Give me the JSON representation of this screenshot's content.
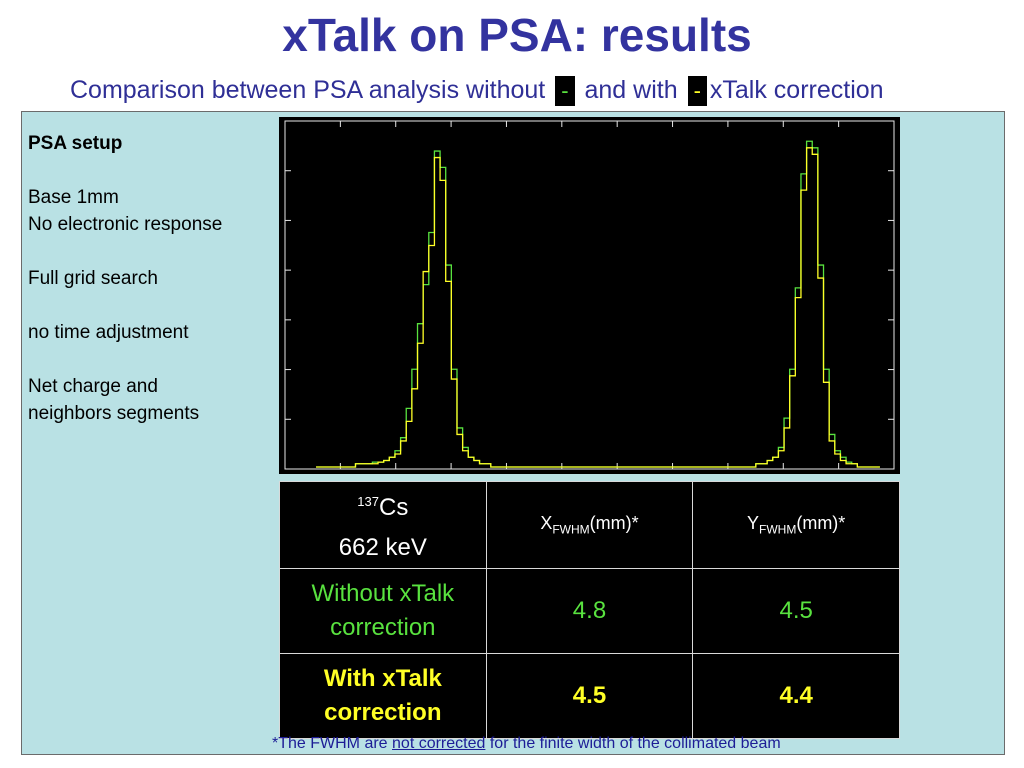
{
  "title": "xTalk on PSA: results",
  "subtitle": {
    "part1": "Comparison between PSA analysis without",
    "dash": "-",
    "part2": "and with",
    "part3": "xTalk correction"
  },
  "colors": {
    "without": "#59e23f",
    "with": "#ffff26",
    "title": "#33339f",
    "panel": "#b9e1e4"
  },
  "setup": {
    "heading": "PSA setup",
    "lines": [
      "Base 1mm",
      "No electronic response",
      "",
      "Full grid search",
      "",
      "no time adjustment",
      "",
      "Net charge and",
      "neighbors segments"
    ]
  },
  "table": {
    "isotope_mass": "137",
    "isotope_symbol": "Cs",
    "energy": "662 keV",
    "col1": {
      "label": "X",
      "sub": "FWHM",
      "unit": "(mm)*"
    },
    "col2": {
      "label": "Y",
      "sub": "FWHM",
      "unit": "(mm)*"
    },
    "rows": [
      {
        "label_line1": "Without xTalk",
        "label_line2": "correction",
        "x": "4.8",
        "y": "4.5"
      },
      {
        "label_line1": "With xTalk",
        "label_line2": "correction",
        "x": "4.5",
        "y": "4.4"
      }
    ]
  },
  "footnote": {
    "pre": "*The FWHM are ",
    "underlined": "not corrected",
    "post": " for the finite width of the collimated beam"
  },
  "chart_data": {
    "type": "line",
    "grid": false,
    "x": [
      1,
      2,
      3,
      4,
      5,
      6,
      7,
      8,
      9,
      10,
      11,
      12,
      13,
      14,
      15,
      16,
      17,
      18,
      19,
      20,
      21,
      22,
      23,
      24,
      25,
      26,
      27,
      28,
      29,
      30,
      31,
      32,
      33,
      34,
      35,
      36,
      37,
      38,
      39,
      40,
      41,
      42,
      43,
      44,
      45,
      46,
      47,
      48,
      49,
      50,
      51,
      52,
      53,
      54,
      55,
      56,
      57,
      58,
      59,
      60,
      61,
      62,
      63,
      64,
      65,
      66,
      67,
      68,
      69,
      70,
      71,
      72,
      73,
      74,
      75,
      76,
      77,
      78,
      79,
      80,
      81,
      82,
      83,
      84,
      85,
      86,
      87,
      88,
      89,
      90,
      91,
      92,
      93,
      94,
      95,
      96,
      97,
      98,
      99,
      100
    ],
    "xlim": [
      -5,
      103
    ],
    "ylim": [
      0,
      1.05
    ],
    "series": [
      {
        "color": "#59e23f",
        "values": [
          0,
          0,
          0,
          0,
          0,
          0,
          0,
          0.01,
          0.01,
          0.01,
          0.015,
          0.015,
          0.02,
          0.03,
          0.05,
          0.09,
          0.18,
          0.3,
          0.44,
          0.56,
          0.72,
          0.97,
          0.92,
          0.62,
          0.3,
          0.12,
          0.06,
          0.03,
          0.02,
          0.01,
          0.01,
          0,
          0,
          0,
          0,
          0,
          0,
          0,
          0,
          0,
          0,
          0,
          0,
          0,
          0,
          0,
          0,
          0,
          0,
          0,
          0,
          0,
          0,
          0,
          0,
          0,
          0,
          0,
          0,
          0,
          0,
          0,
          0,
          0,
          0,
          0,
          0,
          0,
          0,
          0,
          0,
          0,
          0,
          0,
          0,
          0,
          0,
          0,
          0.01,
          0.01,
          0.02,
          0.03,
          0.06,
          0.15,
          0.3,
          0.55,
          0.9,
          1.0,
          0.98,
          0.62,
          0.3,
          0.1,
          0.05,
          0.03,
          0.015,
          0.01,
          0,
          0,
          0,
          0
        ]
      },
      {
        "color": "#ffff26",
        "values": [
          0,
          0,
          0,
          0,
          0,
          0,
          0,
          0.01,
          0.01,
          0.01,
          0.01,
          0.015,
          0.02,
          0.03,
          0.04,
          0.08,
          0.14,
          0.24,
          0.38,
          0.6,
          0.68,
          0.95,
          0.88,
          0.57,
          0.27,
          0.1,
          0.05,
          0.03,
          0.02,
          0.01,
          0.01,
          0,
          0,
          0,
          0,
          0,
          0,
          0,
          0,
          0,
          0,
          0,
          0,
          0,
          0,
          0,
          0,
          0,
          0,
          0,
          0,
          0,
          0,
          0,
          0,
          0,
          0,
          0,
          0,
          0,
          0,
          0,
          0,
          0,
          0,
          0,
          0,
          0,
          0,
          0,
          0,
          0,
          0,
          0,
          0,
          0,
          0,
          0,
          0.01,
          0.01,
          0.02,
          0.03,
          0.05,
          0.12,
          0.28,
          0.52,
          0.85,
          0.98,
          0.96,
          0.58,
          0.26,
          0.08,
          0.04,
          0.02,
          0.01,
          0.01,
          0,
          0,
          0,
          0
        ]
      }
    ]
  }
}
